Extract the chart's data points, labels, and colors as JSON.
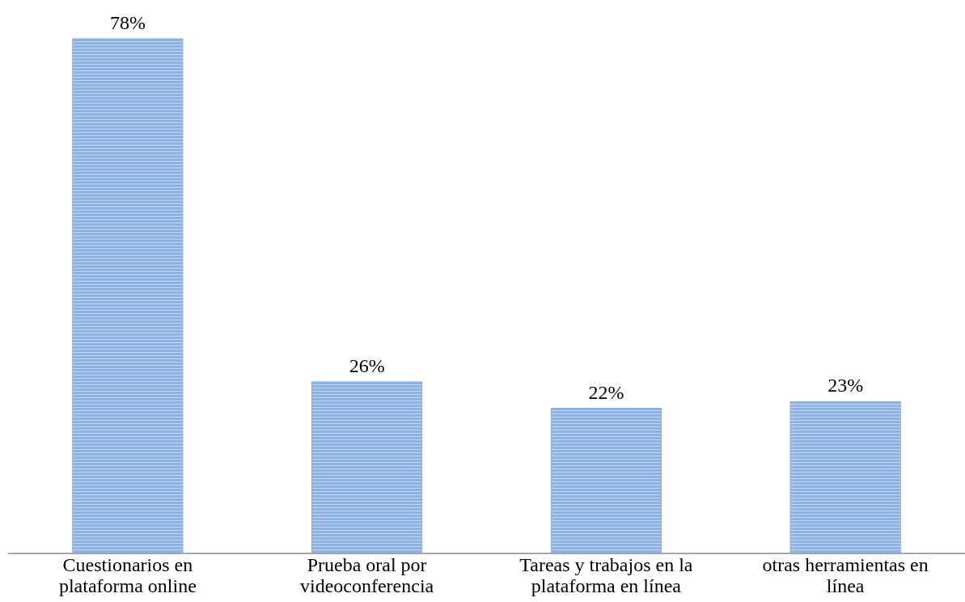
{
  "chart_data": {
    "type": "bar",
    "categories": [
      "Cuestionarios en plataforma online",
      "Prueba oral por videoconferencia",
      "Tareas y trabajos en la plataforma en línea",
      "otras herramientas en línea"
    ],
    "values": [
      78,
      26,
      22,
      23
    ],
    "value_labels": [
      "78%",
      "26%",
      "22%",
      "23%"
    ],
    "color": "#8fb4e3",
    "grid": false
  }
}
